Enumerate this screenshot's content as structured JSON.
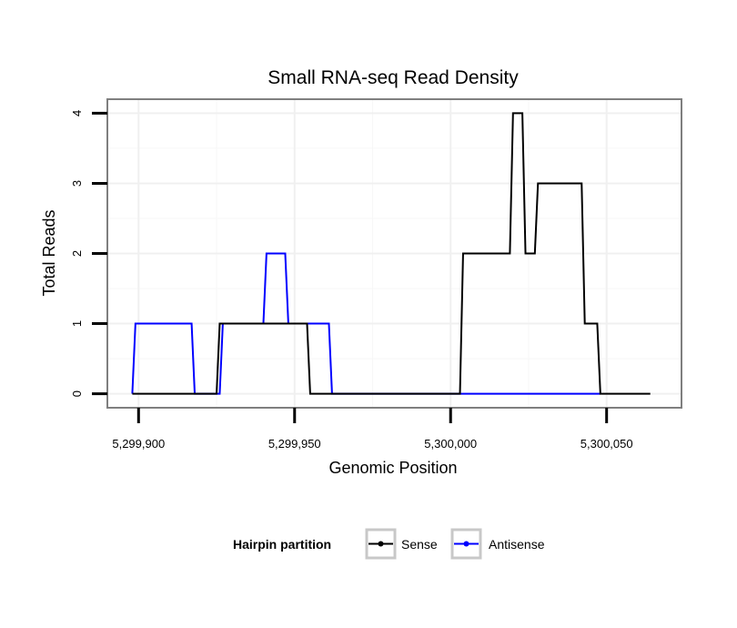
{
  "chart_data": {
    "type": "line",
    "title": "Small RNA-seq Read Density",
    "xlabel": "Genomic Position",
    "ylabel": "Total Reads",
    "xlim": [
      5299890,
      5300074
    ],
    "ylim": [
      -0.2,
      4.2
    ],
    "x_ticks": [
      5299900,
      5299950,
      5300000,
      5300050
    ],
    "x_tick_labels": [
      "5,299,900",
      "5,299,950",
      "5,300,000",
      "5,300,050"
    ],
    "y_ticks": [
      0,
      1,
      2,
      3,
      4
    ],
    "y_tick_labels": [
      "0",
      "1",
      "2",
      "3",
      "4"
    ],
    "grid": true,
    "legend": {
      "title": "Hairpin partition",
      "position": "bottom"
    },
    "series": [
      {
        "name": "Sense",
        "color": "#000000",
        "points": [
          [
            5299898,
            0
          ],
          [
            5299925,
            0
          ],
          [
            5299926,
            1
          ],
          [
            5299954,
            1
          ],
          [
            5299955,
            0
          ],
          [
            5300003,
            0
          ],
          [
            5300004,
            2
          ],
          [
            5300019,
            2
          ],
          [
            5300020,
            4
          ],
          [
            5300023,
            4
          ],
          [
            5300024,
            2
          ],
          [
            5300027,
            2
          ],
          [
            5300028,
            3
          ],
          [
            5300042,
            3
          ],
          [
            5300043,
            1
          ],
          [
            5300047,
            1
          ],
          [
            5300048,
            0
          ],
          [
            5300064,
            0
          ]
        ]
      },
      {
        "name": "Antisense",
        "color": "#0000ff",
        "points": [
          [
            5299898,
            0
          ],
          [
            5299899,
            1
          ],
          [
            5299917,
            1
          ],
          [
            5299918,
            0
          ],
          [
            5299926,
            0
          ],
          [
            5299927,
            1
          ],
          [
            5299940,
            1
          ],
          [
            5299941,
            2
          ],
          [
            5299947,
            2
          ],
          [
            5299948,
            1
          ],
          [
            5299961,
            1
          ],
          [
            5299962,
            0
          ],
          [
            5300048,
            0
          ]
        ]
      }
    ]
  }
}
